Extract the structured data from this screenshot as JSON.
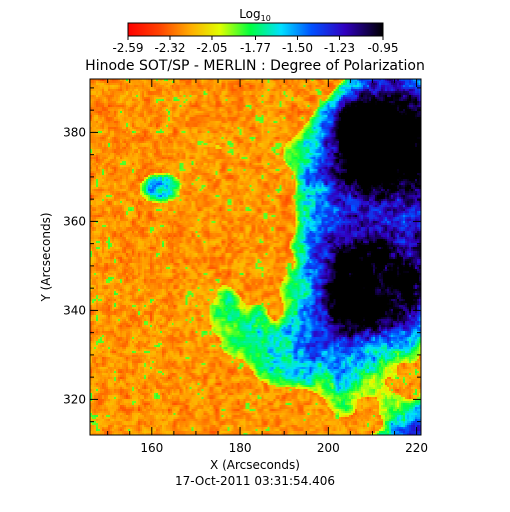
{
  "chart_data": {
    "type": "heatmap",
    "title": "Hinode SOT/SP - MERLIN : Degree of Polarization",
    "colorbar": {
      "label": "Log",
      "label_sub": "10",
      "ticks": [
        "-2.59",
        "-2.32",
        "-2.05",
        "-1.77",
        "-1.50",
        "-1.23",
        "-0.95"
      ],
      "range": [
        -2.59,
        -0.95
      ],
      "colormap": "rainbow (red-orange-yellow-green-cyan-blue-violet-black)"
    },
    "xlabel": "X (Arcseconds)",
    "ylabel": "Y (Arcseconds)",
    "xlim": [
      146,
      221
    ],
    "ylim": [
      312,
      392
    ],
    "xticks": [
      "160",
      "180",
      "200",
      "220"
    ],
    "yticks": [
      "320",
      "340",
      "360",
      "380"
    ],
    "timestamp": "17-Oct-2011 03:31:54.406",
    "regions": [
      {
        "note": "high polarization patches (blue/black)",
        "x": [
          182,
          221
        ],
        "y": [
          318,
          392
        ]
      },
      {
        "note": "low polarization background (red/orange)",
        "x": [
          146,
          200
        ],
        "y": [
          312,
          392
        ]
      }
    ]
  }
}
